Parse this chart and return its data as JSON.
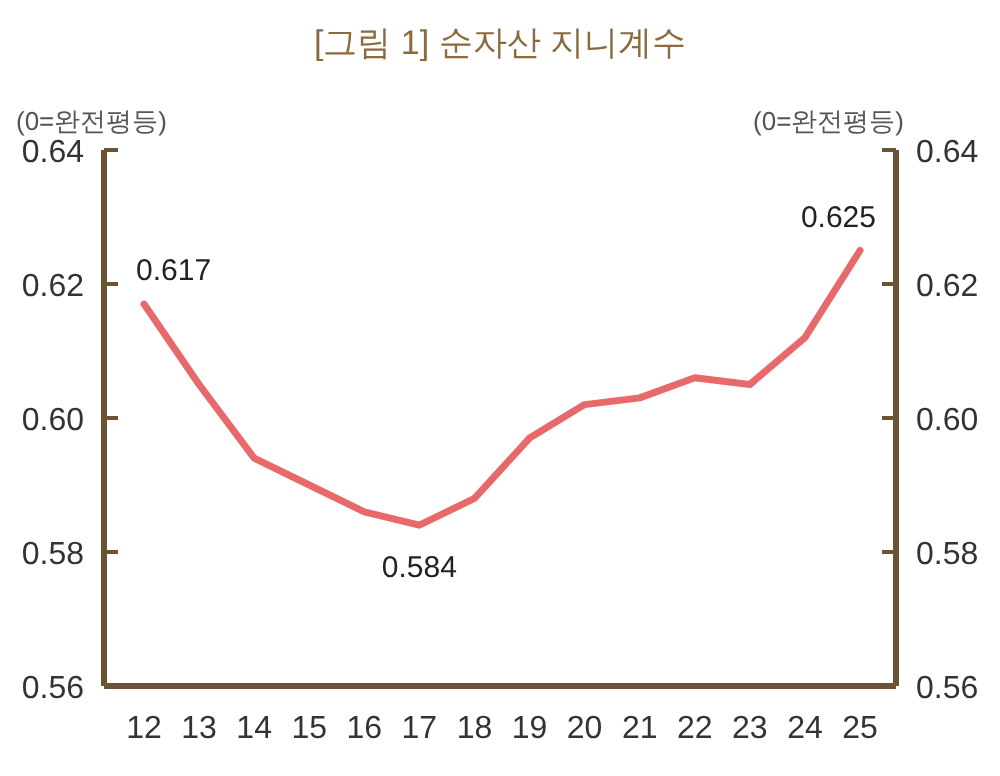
{
  "chart_data": {
    "type": "line",
    "title": "[그림 1] 순자산 지니계수",
    "ylabel": "(0=완전평등)",
    "y2label": "(0=완전평등)",
    "categories": [
      "12",
      "13",
      "14",
      "15",
      "16",
      "17",
      "18",
      "19",
      "20",
      "21",
      "22",
      "23",
      "24",
      "25"
    ],
    "series": [
      {
        "color": "#e8696a",
        "values": [
          0.617,
          0.605,
          0.594,
          0.59,
          0.586,
          0.584,
          0.588,
          0.597,
          0.602,
          0.603,
          0.606,
          0.605,
          0.612,
          0.625
        ],
        "value_labels": [
          "0.617",
          null,
          null,
          null,
          null,
          "0.584",
          null,
          null,
          null,
          null,
          null,
          null,
          null,
          "0.625"
        ]
      }
    ],
    "ylim": [
      0.56,
      0.64
    ],
    "yticks": [
      0.56,
      0.58,
      {
        "value": 0.6,
        "label": "0.60"
      },
      0.62,
      0.64
    ],
    "y2lim": [
      0.56,
      0.64
    ],
    "y2ticks": [
      0.56,
      0.58,
      {
        "value": 0.6,
        "label": "0.60"
      },
      0.62,
      0.64
    ],
    "grid": false,
    "marker": "none",
    "line_style": "solid"
  }
}
